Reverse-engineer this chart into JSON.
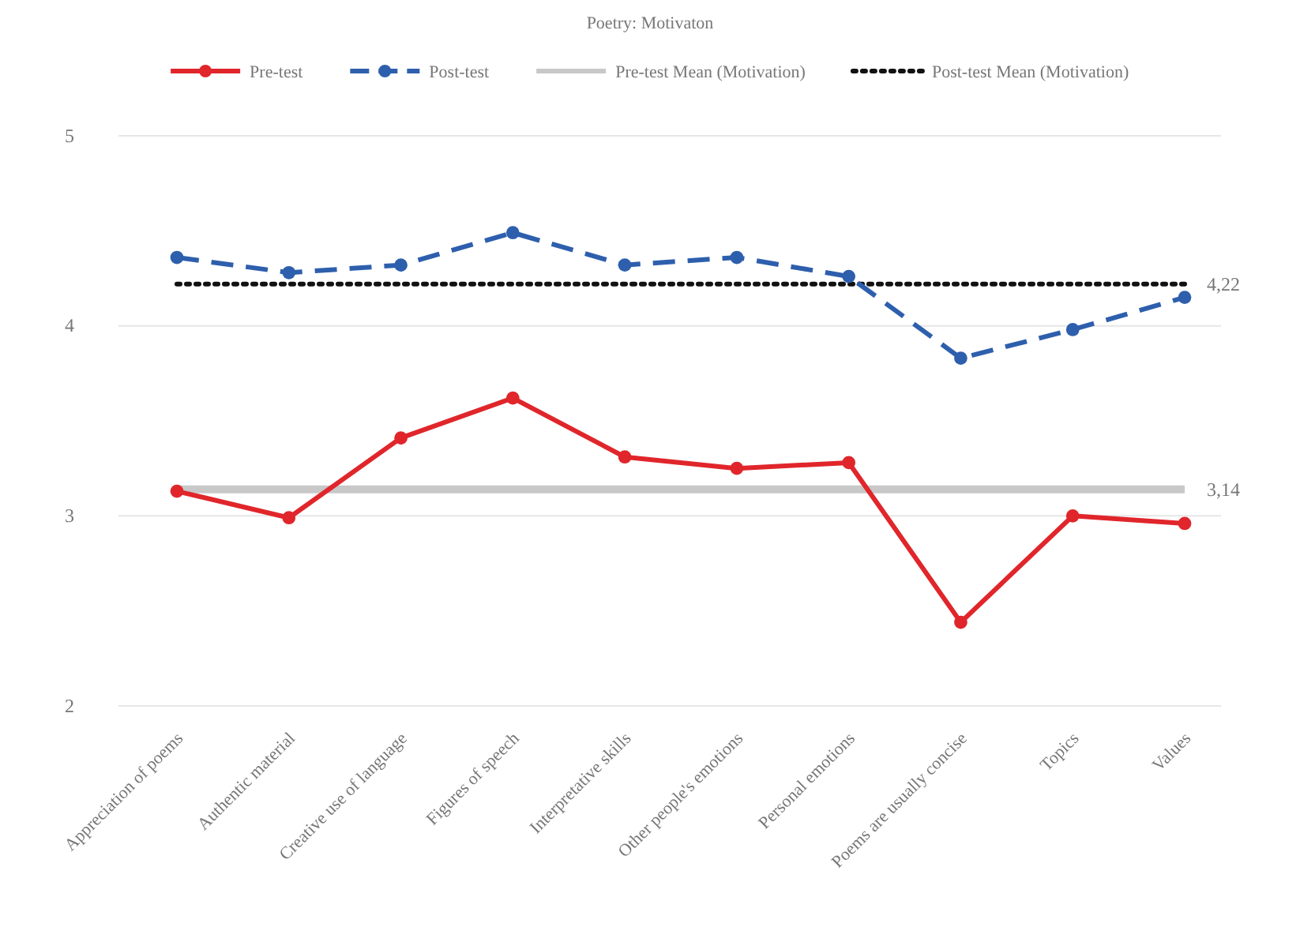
{
  "chart_data": {
    "type": "line",
    "title": "Poetry: Motivaton",
    "categories": [
      "Appreciation of poems",
      "Authentic material",
      "Creative use of language",
      "Figures of speech",
      "Interpretative skills",
      "Other people's emotions",
      "Personal emotions",
      "Poems are usually concise",
      "Topics",
      "Values"
    ],
    "series": [
      {
        "name": "Pre-test",
        "color": "#e0262b",
        "marker": "circle",
        "line_style": "solid",
        "values": [
          3.13,
          2.99,
          3.41,
          3.62,
          3.31,
          3.25,
          3.28,
          2.44,
          3.0,
          2.96
        ]
      },
      {
        "name": "Post-test",
        "color": "#2e5fad",
        "marker": "circle",
        "line_style": "dashed",
        "values": [
          4.36,
          4.28,
          4.32,
          4.49,
          4.32,
          4.36,
          4.26,
          3.83,
          3.98,
          4.15
        ]
      },
      {
        "name": "Pre-test Mean (Motivation)",
        "color": "#c8c8c8",
        "marker": "none",
        "line_style": "solid",
        "values": [
          3.14,
          3.14,
          3.14,
          3.14,
          3.14,
          3.14,
          3.14,
          3.14,
          3.14,
          3.14
        ],
        "value_labels": [
          null,
          null,
          null,
          null,
          null,
          null,
          null,
          null,
          null,
          "3,14"
        ]
      },
      {
        "name": "Post-test Mean (Motivation)",
        "color": "#111111",
        "marker": "none",
        "line_style": "dotted",
        "values": [
          4.22,
          4.22,
          4.22,
          4.22,
          4.22,
          4.22,
          4.22,
          4.22,
          4.22,
          4.22
        ],
        "value_labels": [
          null,
          null,
          null,
          null,
          null,
          null,
          null,
          null,
          null,
          "4,22"
        ]
      }
    ],
    "ylim": [
      2,
      5
    ],
    "yticks": [
      2,
      3,
      4,
      5
    ],
    "grid": "y",
    "legend": "top"
  }
}
